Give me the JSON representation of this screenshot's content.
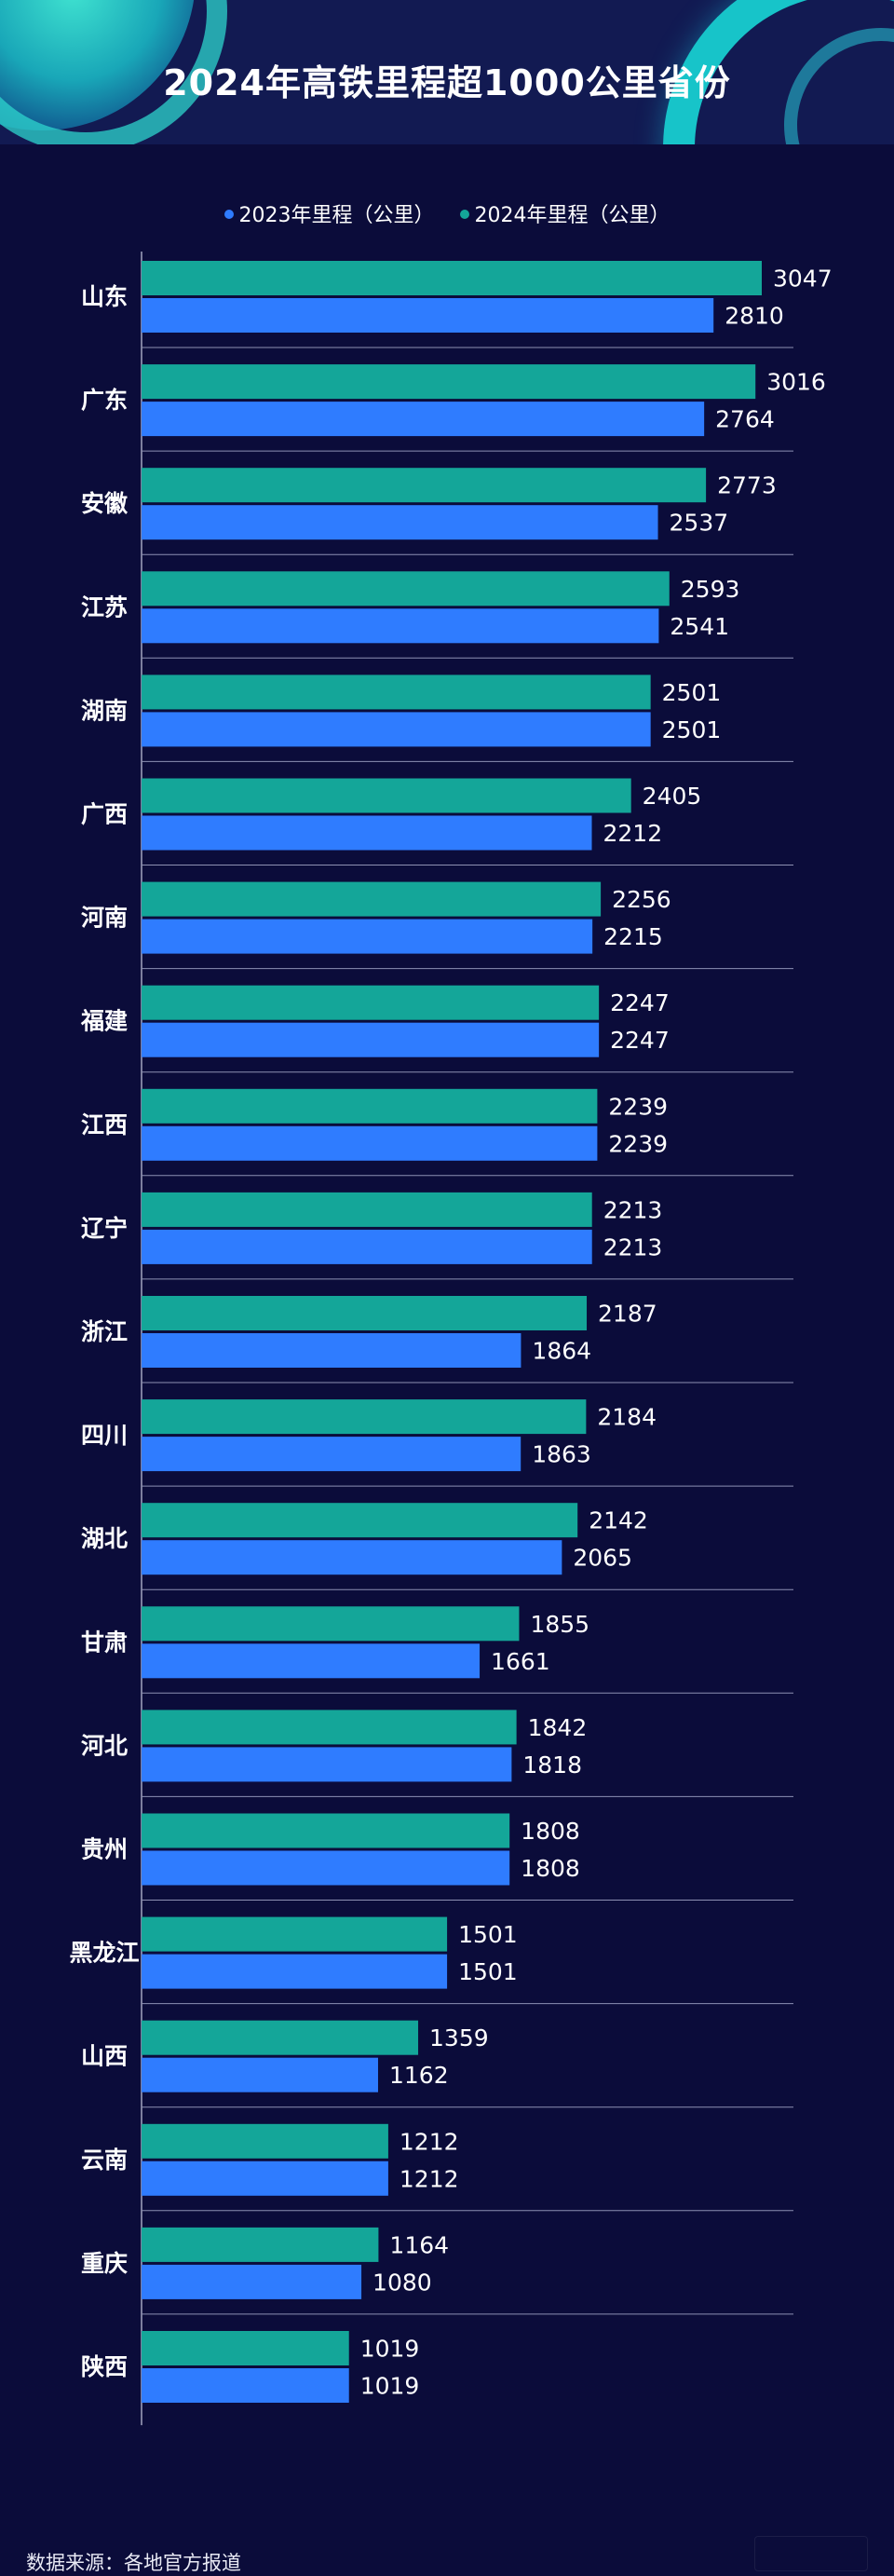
{
  "chart_data": {
    "type": "bar",
    "orientation": "horizontal",
    "title": "2024年高铁里程超1000公里省份",
    "categories": [
      "山东",
      "广东",
      "安徽",
      "江苏",
      "湖南",
      "广西",
      "河南",
      "福建",
      "江西",
      "辽宁",
      "浙江",
      "四川",
      "湖北",
      "甘肃",
      "河北",
      "贵州",
      "黑龙江",
      "山西",
      "云南",
      "重庆",
      "陕西"
    ],
    "series": [
      {
        "name": "2024年里程（公里）",
        "color": "#14a699",
        "values": [
          3047,
          3016,
          2773,
          2593,
          2501,
          2405,
          2256,
          2247,
          2239,
          2213,
          2187,
          2184,
          2142,
          1855,
          1842,
          1808,
          1501,
          1359,
          1212,
          1164,
          1019
        ]
      },
      {
        "name": "2023年里程（公里）",
        "color": "#2f7cff",
        "values": [
          2810,
          2764,
          2537,
          2541,
          2501,
          2212,
          2215,
          2247,
          2239,
          2213,
          1864,
          1863,
          2065,
          1661,
          1818,
          1808,
          1501,
          1162,
          1212,
          1080,
          1019
        ]
      }
    ],
    "legend_order": [
      "2023年里程（公里）",
      "2024年里程（公里）"
    ],
    "legend_position": "top-center",
    "grid": false,
    "xlim": [
      0,
      3500
    ]
  },
  "source_text": "数据来源：各地官方报道"
}
